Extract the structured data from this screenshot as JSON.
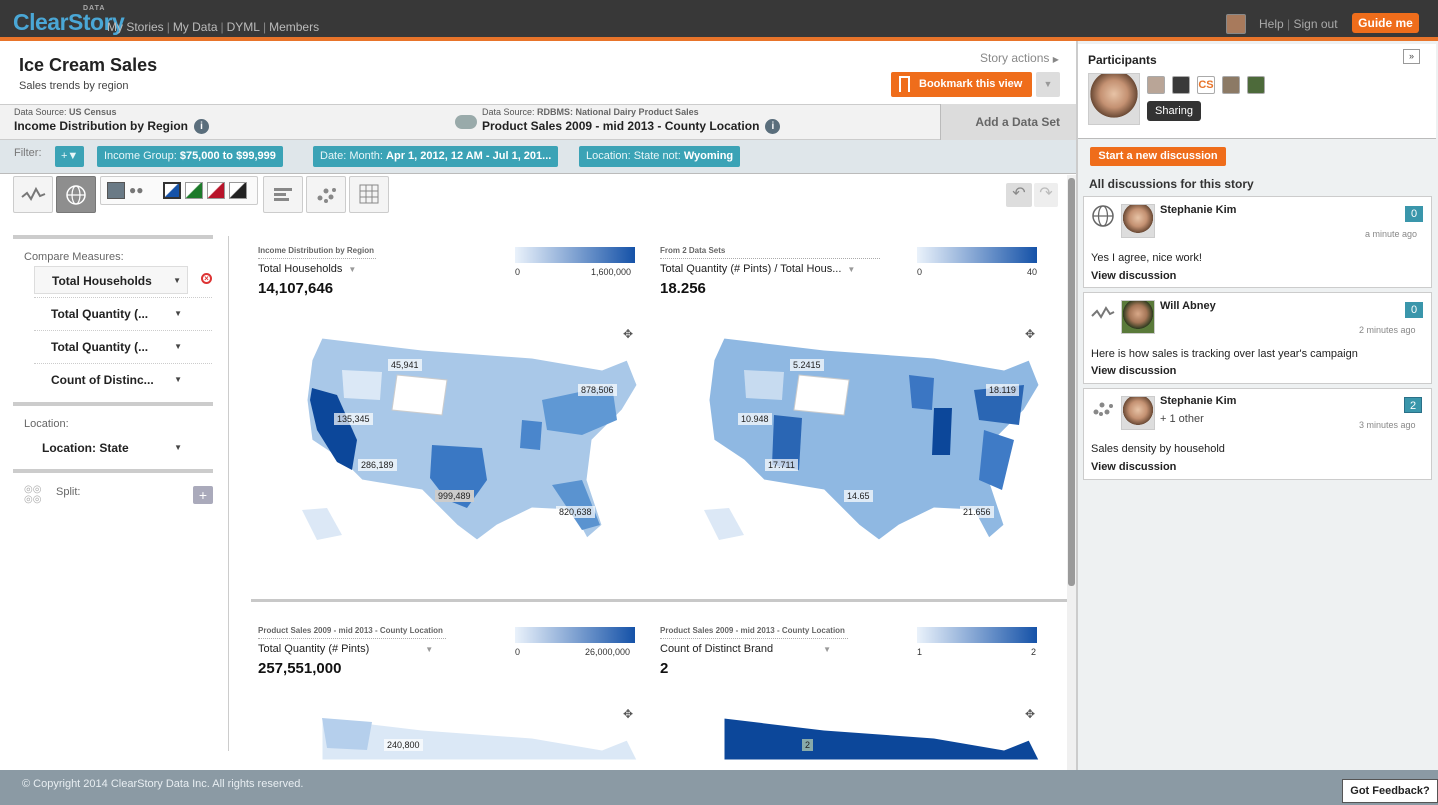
{
  "app": {
    "logo": "ClearStory",
    "logo_sup": "DATA",
    "nav": [
      "My Stories",
      "My Data",
      "DYML",
      "Members"
    ],
    "help": "Help",
    "signout": "Sign out",
    "guide": "Guide me"
  },
  "story": {
    "title": "Ice Cream Sales",
    "subtitle": "Sales trends by region",
    "actions": "Story actions",
    "bookmark": "Bookmark this view"
  },
  "datasources": [
    {
      "prefix": "Data Source:",
      "source": "US Census",
      "name": "Income Distribution by Region"
    },
    {
      "prefix": "Data Source:",
      "source": "RDBMS: National Dairy Product Sales",
      "name": "Product Sales 2009 - mid 2013 - County Location"
    }
  ],
  "add_dataset": "Add a Data Set",
  "filter": {
    "label": "Filter:",
    "add": "+▼",
    "chips": [
      {
        "key": "Income Group:",
        "val": "$75,000 to $99,999"
      },
      {
        "key": "Date: Month:",
        "val": "Apr 1, 2012, 12 AM - Jul 1, 201..."
      },
      {
        "key": "Location: State not:",
        "val": "Wyoming"
      }
    ]
  },
  "left": {
    "compare_label": "Compare Measures:",
    "measures": [
      "Total Households",
      "Total Quantity (...",
      "Total Quantity (...",
      "Count of Distinc..."
    ],
    "location_label": "Location:",
    "location": "Location: State",
    "split_label": "Split:"
  },
  "tiles": [
    {
      "source": "Income Distribution by Region",
      "measure": "Total Households",
      "value": "14,107,646",
      "leg_min": "0",
      "leg_max": "1,600,000",
      "labels": [
        "45,941",
        "878,506",
        "135,345",
        "286,189",
        "999,489",
        "820,638"
      ]
    },
    {
      "source": "From 2 Data Sets",
      "measure": "Total Quantity (# Pints) / Total Hous...",
      "value": "18.256",
      "leg_min": "0",
      "leg_max": "40",
      "labels": [
        "5.2415",
        "18.119",
        "10.948",
        "17.711",
        "14.65",
        "21.656"
      ]
    },
    {
      "source": "Product Sales 2009 - mid 2013 - County Location",
      "measure": "Total Quantity (# Pints)",
      "value": "257,551,000",
      "leg_min": "0",
      "leg_max": "26,000,000",
      "labels": [
        "240,800"
      ]
    },
    {
      "source": "Product Sales 2009 - mid 2013 - County Location",
      "measure": "Count of Distinct Brand",
      "value": "2",
      "leg_min": "1",
      "leg_max": "2",
      "labels": [
        "2"
      ]
    }
  ],
  "colors": {
    "accent": "#ef6d1b",
    "teal": "#3ba3b6",
    "map_dark": "#1552a8",
    "map_light": "#eaf2fb"
  },
  "participants": {
    "title": "Participants",
    "tooltip": "Sharing"
  },
  "discussions": {
    "start": "Start a new discussion",
    "all": "All discussions for this story",
    "items": [
      {
        "name": "Stephanie Kim",
        "other": "",
        "count": "0",
        "time": "a minute ago",
        "text": "Yes I agree, nice work!",
        "link": "View discussion",
        "icon": "globe-icon"
      },
      {
        "name": "Will Abney",
        "other": "",
        "count": "0",
        "time": "2 minutes ago",
        "text": "Here is how sales is tracking over last year's campaign",
        "link": "View discussion",
        "icon": "line-chart-icon"
      },
      {
        "name": "Stephanie Kim",
        "other": "+ 1 other",
        "count": "2",
        "time": "3 minutes ago",
        "text": "Sales density by household",
        "link": "View discussion",
        "icon": "scatter-icon"
      }
    ]
  },
  "footer": {
    "copyright": "© Copyright 2014 ClearStory Data Inc. All rights reserved.",
    "feedback": "Got Feedback?"
  }
}
